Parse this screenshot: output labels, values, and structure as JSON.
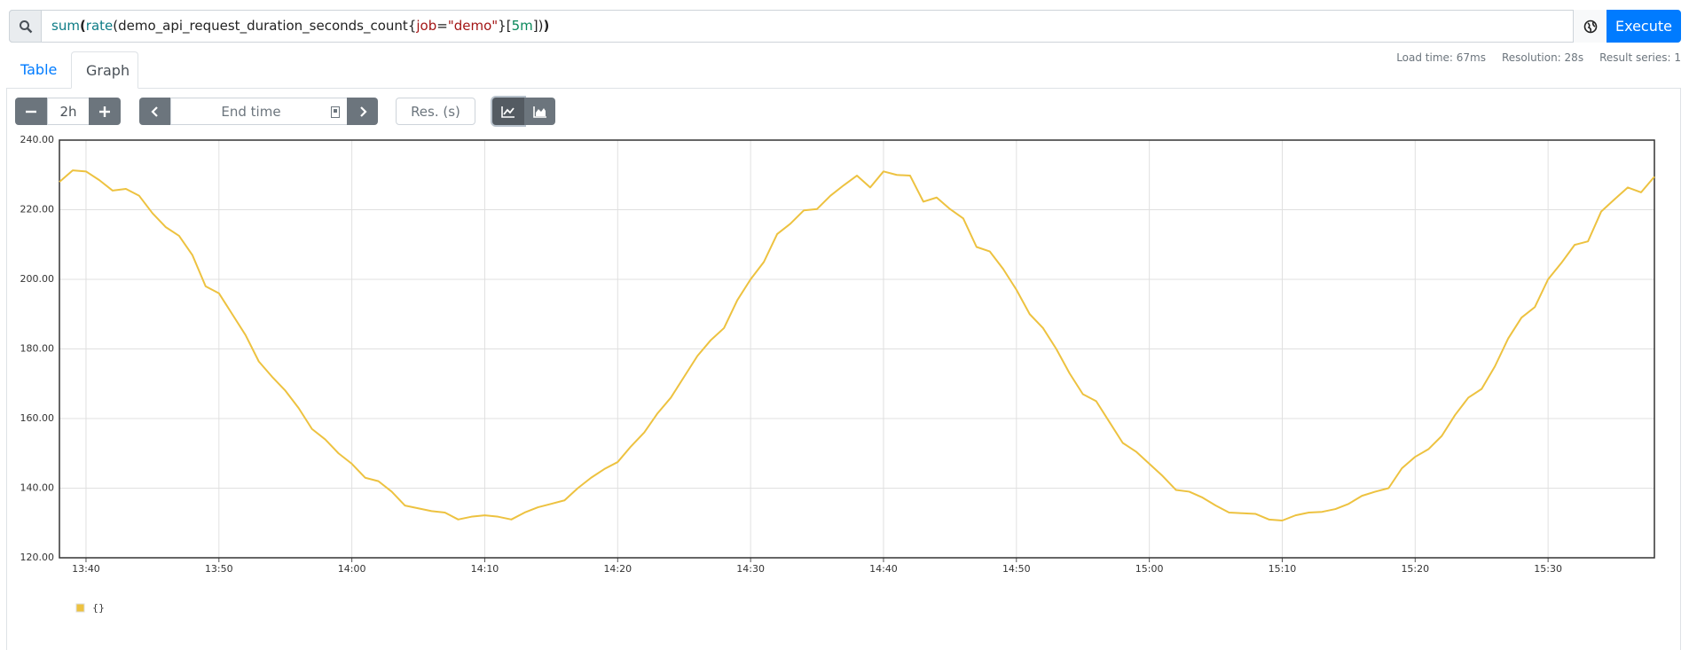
{
  "query": {
    "tokens": [
      "sum",
      "(",
      "rate",
      "(",
      "demo_api_request_duration_seconds_count",
      "{",
      "job",
      "=",
      "\"demo\"",
      "}",
      "[",
      "5m",
      "]",
      ")",
      ")"
    ]
  },
  "execute": "Execute",
  "stats": [
    "Load time: 67ms",
    "Resolution: 28s",
    "Result series: 1"
  ],
  "tabs": [
    "Table",
    "Graph"
  ],
  "controls": {
    "range": "2h",
    "end_time": "End time",
    "resolution": "Res. (s)"
  },
  "chart_data": {
    "type": "line",
    "x": [
      "13:38",
      "13:39",
      "13:40",
      "13:41",
      "13:42",
      "13:43",
      "13:44",
      "13:45",
      "13:46",
      "13:47",
      "13:48",
      "13:49",
      "13:50",
      "13:51",
      "13:52",
      "13:53",
      "13:54",
      "13:55",
      "13:56",
      "13:57",
      "13:58",
      "13:59",
      "14:00",
      "14:01",
      "14:02",
      "14:03",
      "14:04",
      "14:05",
      "14:06",
      "14:07",
      "14:08",
      "14:09",
      "14:10",
      "14:11",
      "14:12",
      "14:13",
      "14:14",
      "14:15",
      "14:16",
      "14:17",
      "14:18",
      "14:19",
      "14:20",
      "14:21",
      "14:22",
      "14:23",
      "14:24",
      "14:25",
      "14:26",
      "14:27",
      "14:28",
      "14:29",
      "14:30",
      "14:31",
      "14:32",
      "14:33",
      "14:34",
      "14:35",
      "14:36",
      "14:37",
      "14:38",
      "14:39",
      "14:40",
      "14:41",
      "14:42",
      "14:43",
      "14:44",
      "14:45",
      "14:46",
      "14:47",
      "14:48",
      "14:49",
      "14:50",
      "14:51",
      "14:52",
      "14:53",
      "14:54",
      "14:55",
      "14:56",
      "14:57",
      "14:58",
      "14:59",
      "15:00",
      "15:01",
      "15:02",
      "15:03",
      "15:04",
      "15:05",
      "15:06",
      "15:07",
      "15:08",
      "15:09",
      "15:10",
      "15:11",
      "15:12",
      "15:13",
      "15:14",
      "15:15",
      "15:16",
      "15:17",
      "15:18",
      "15:19",
      "15:20",
      "15:21",
      "15:22",
      "15:23",
      "15:24",
      "15:25",
      "15:26",
      "15:27",
      "15:28",
      "15:29",
      "15:30",
      "15:31",
      "15:32",
      "15:33",
      "15:34",
      "15:35",
      "15:36",
      "15:37",
      "15:38"
    ],
    "series": [
      {
        "name": "{}",
        "color": "#edc240",
        "values": [
          228,
          231.3,
          231,
          228.5,
          225.5,
          226,
          224,
          219,
          215,
          212.5,
          207,
          198,
          196,
          190,
          184,
          176.4,
          172,
          168,
          163,
          157,
          154,
          150,
          147,
          143,
          142,
          139,
          135,
          134.2,
          133.4,
          133,
          131,
          131.8,
          132.2,
          131.8,
          131,
          133,
          134.5,
          135.5,
          136.5,
          140,
          143,
          145.5,
          147.5,
          152,
          156,
          161.5,
          166,
          172,
          178,
          182.5,
          186,
          194,
          200,
          205,
          213,
          216,
          219.8,
          220.2,
          224,
          227,
          229.8,
          226.4,
          231,
          230,
          229.8,
          222.3,
          223.5,
          220.2,
          217.5,
          209.3,
          208,
          203,
          197,
          190,
          186,
          180,
          173,
          167,
          165,
          159,
          153,
          150.5,
          147,
          143.5,
          139.5,
          139,
          137.3,
          135,
          133,
          132.8,
          132.6,
          131,
          130.7,
          132.2,
          133,
          133.2,
          134,
          135.5,
          137.8,
          139,
          140,
          145.7,
          149,
          151.2,
          155,
          161,
          166,
          168.5,
          175,
          183,
          189,
          192,
          200,
          204.7,
          209.9,
          210.9,
          219.5,
          223,
          226.4,
          225,
          229.5
        ]
      }
    ],
    "xlim": [
      "13:38",
      "15:38"
    ],
    "xticks": [
      "13:40",
      "13:50",
      "14:00",
      "14:10",
      "14:20",
      "14:30",
      "14:40",
      "14:50",
      "15:00",
      "15:10",
      "15:20",
      "15:30"
    ],
    "ylim": [
      120,
      240
    ],
    "yticks": [
      {
        "value": 120,
        "label": "120.00"
      },
      {
        "value": 140,
        "label": "140.00"
      },
      {
        "value": 160,
        "label": "160.00"
      },
      {
        "value": 180,
        "label": "180.00"
      },
      {
        "value": 200,
        "label": "200.00"
      },
      {
        "value": 220,
        "label": "220.00"
      },
      {
        "value": 240,
        "label": "240.00"
      }
    ],
    "grid": true
  }
}
